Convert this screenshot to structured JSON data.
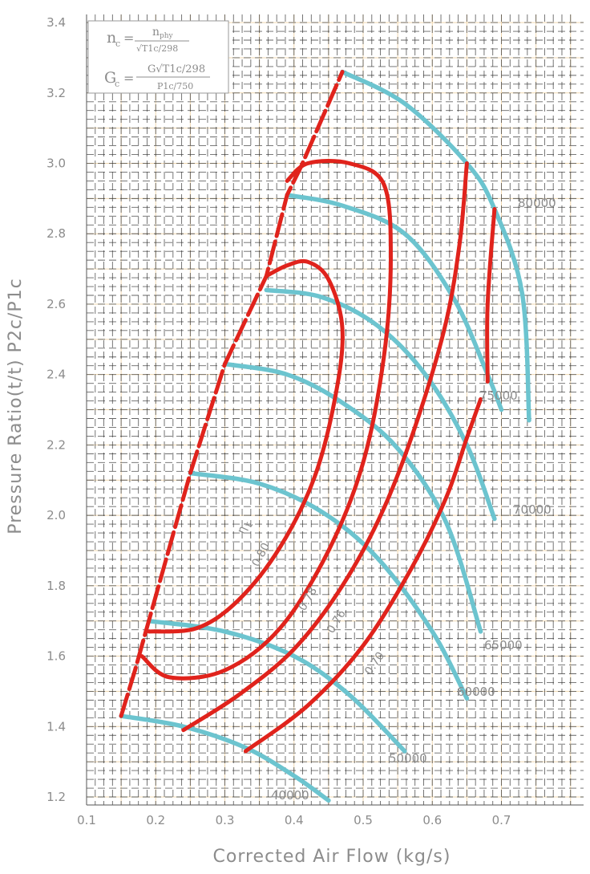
{
  "chart_data": {
    "type": "line",
    "title": "",
    "xlabel": "Corrected Air Flow (kg/s)",
    "ylabel": "Pressure Ratio(t/t) P2c/P1c",
    "xlim": [
      0.1,
      0.8
    ],
    "ylim": [
      1.2,
      3.4
    ],
    "x_ticks": [
      "0.1",
      "0.2",
      "0.3",
      "0.4",
      "0.5",
      "0.6",
      "0.7"
    ],
    "y_ticks": [
      "1.2",
      "1.4",
      "1.6",
      "1.8",
      "2.0",
      "2.2",
      "2.4",
      "2.6",
      "2.8",
      "3.0",
      "3.2",
      "3.4"
    ],
    "grid": true,
    "colors": {
      "speed_lines": "#6cc4cf",
      "efficiency_islands": "#e0231c",
      "surge_line": "#e0231c",
      "grid": "#333333",
      "grid_minor": "#f0d8b0"
    },
    "formula": {
      "nc_lhs": "n",
      "nc_sub": "c",
      "nc_num": "n",
      "nc_num_sub": "phy",
      "nc_den": "√T1c/298",
      "gc_lhs": "G",
      "gc_sub": "c",
      "gc_num": "G√T1c/298",
      "gc_den": "P1c/750"
    },
    "efficiency_symbol": "η",
    "efficiency_symbol_sub": "t",
    "surge_line": [
      [
        0.15,
        1.43
      ],
      [
        0.17,
        1.56
      ],
      [
        0.19,
        1.7
      ],
      [
        0.25,
        2.12
      ],
      [
        0.3,
        2.43
      ],
      [
        0.36,
        2.68
      ],
      [
        0.39,
        2.91
      ],
      [
        0.41,
        2.99
      ],
      [
        0.47,
        3.26
      ]
    ],
    "speed_lines": [
      {
        "name": "40000",
        "points": [
          [
            0.15,
            1.43
          ],
          [
            0.24,
            1.4
          ],
          [
            0.33,
            1.34
          ],
          [
            0.4,
            1.26
          ],
          [
            0.45,
            1.19
          ]
        ]
      },
      {
        "name": "50000",
        "points": [
          [
            0.19,
            1.7
          ],
          [
            0.3,
            1.67
          ],
          [
            0.4,
            1.6
          ],
          [
            0.48,
            1.49
          ],
          [
            0.56,
            1.33
          ]
        ]
      },
      {
        "name": "60000",
        "points": [
          [
            0.25,
            2.12
          ],
          [
            0.35,
            2.09
          ],
          [
            0.44,
            2.01
          ],
          [
            0.52,
            1.88
          ],
          [
            0.6,
            1.67
          ],
          [
            0.65,
            1.48
          ]
        ]
      },
      {
        "name": "65000",
        "points": [
          [
            0.3,
            2.43
          ],
          [
            0.39,
            2.4
          ],
          [
            0.47,
            2.32
          ],
          [
            0.55,
            2.19
          ],
          [
            0.62,
            1.98
          ],
          [
            0.67,
            1.67
          ]
        ]
      },
      {
        "name": "70000",
        "points": [
          [
            0.36,
            2.64
          ],
          [
            0.44,
            2.62
          ],
          [
            0.52,
            2.54
          ],
          [
            0.59,
            2.4
          ],
          [
            0.65,
            2.2
          ],
          [
            0.69,
            1.99
          ]
        ]
      },
      {
        "name": "75000",
        "points": [
          [
            0.39,
            2.91
          ],
          [
            0.47,
            2.88
          ],
          [
            0.56,
            2.8
          ],
          [
            0.63,
            2.62
          ],
          [
            0.68,
            2.4
          ],
          [
            0.7,
            2.3
          ]
        ]
      },
      {
        "name": "80000",
        "points": [
          [
            0.47,
            3.26
          ],
          [
            0.56,
            3.17
          ],
          [
            0.65,
            3.0
          ],
          [
            0.69,
            2.87
          ],
          [
            0.73,
            2.63
          ],
          [
            0.74,
            2.27
          ]
        ]
      }
    ],
    "efficiency_islands": [
      {
        "name": "0.80",
        "points": [
          [
            0.19,
            1.67
          ],
          [
            0.26,
            1.68
          ],
          [
            0.32,
            1.76
          ],
          [
            0.38,
            1.91
          ],
          [
            0.43,
            2.11
          ],
          [
            0.46,
            2.34
          ],
          [
            0.47,
            2.53
          ],
          [
            0.45,
            2.67
          ],
          [
            0.42,
            2.72
          ],
          [
            0.39,
            2.71
          ],
          [
            0.36,
            2.68
          ]
        ]
      },
      {
        "name": "0.78",
        "points": [
          [
            0.18,
            1.6
          ],
          [
            0.22,
            1.54
          ],
          [
            0.3,
            1.56
          ],
          [
            0.38,
            1.68
          ],
          [
            0.45,
            1.9
          ],
          [
            0.5,
            2.15
          ],
          [
            0.53,
            2.45
          ],
          [
            0.54,
            2.73
          ],
          [
            0.53,
            2.94
          ],
          [
            0.48,
            3.0
          ],
          [
            0.42,
            3.0
          ],
          [
            0.39,
            2.95
          ]
        ]
      },
      {
        "name": "0.76",
        "points": [
          [
            0.24,
            1.39
          ],
          [
            0.32,
            1.49
          ],
          [
            0.4,
            1.62
          ],
          [
            0.47,
            1.8
          ],
          [
            0.53,
            2.02
          ],
          [
            0.58,
            2.28
          ],
          [
            0.62,
            2.55
          ],
          [
            0.64,
            2.78
          ],
          [
            0.65,
            3.0
          ]
        ]
      },
      {
        "name": "0.70",
        "points": [
          [
            0.33,
            1.33
          ],
          [
            0.42,
            1.46
          ],
          [
            0.5,
            1.63
          ],
          [
            0.57,
            1.85
          ],
          [
            0.62,
            2.05
          ],
          [
            0.65,
            2.22
          ],
          [
            0.67,
            2.33
          ]
        ]
      },
      {
        "name": "0.70b",
        "points": [
          [
            0.68,
            2.38
          ],
          [
            0.68,
            2.6
          ],
          [
            0.69,
            2.87
          ]
        ]
      }
    ],
    "efficiency_labels": [
      "0.80",
      "0.78",
      "0.76",
      "0.70"
    ]
  }
}
